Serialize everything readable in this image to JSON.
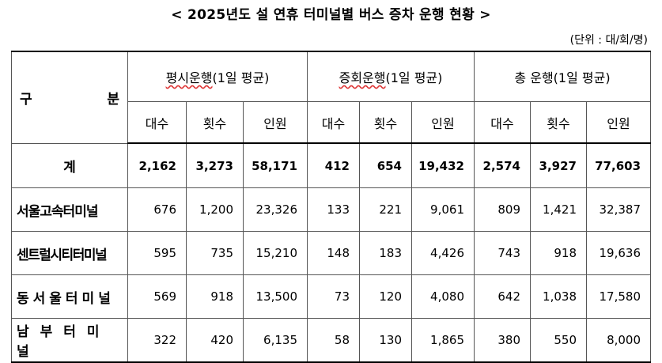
{
  "title": "< 2025년도 설 연휴 터미널별 버스 증차 운행 현황 >",
  "unit": "(단위 : 대/회/명)",
  "header": {
    "gubun_left": "구",
    "gubun_right": "분",
    "groups": [
      {
        "main": "평시운행",
        "sub": "(1일 평균)"
      },
      {
        "main": "증회운행",
        "sub": "(1일 평균)"
      },
      {
        "main": "총 운행",
        "sub": "(1일 평균)"
      }
    ],
    "subcols": [
      "대수",
      "횟수",
      "인원",
      "대수",
      "횟수",
      "인원",
      "대수",
      "횟수",
      "인원"
    ]
  },
  "rows": [
    {
      "name": "계",
      "values": [
        "2,162",
        "3,273",
        "58,171",
        "412",
        "654",
        "19,432",
        "2,574",
        "3,927",
        "77,603"
      ]
    },
    {
      "name": "서울고속터미널",
      "values": [
        "676",
        "1,200",
        "23,326",
        "133",
        "221",
        "9,061",
        "809",
        "1,421",
        "32,387"
      ]
    },
    {
      "name": "센트럴시티터미널",
      "values": [
        "595",
        "735",
        "15,210",
        "148",
        "183",
        "4,426",
        "743",
        "918",
        "19,636"
      ]
    },
    {
      "name": "동서울터미널",
      "values": [
        "569",
        "918",
        "13,500",
        "73",
        "120",
        "4,080",
        "642",
        "1,038",
        "17,580"
      ]
    },
    {
      "name": "남부터미널",
      "values": [
        "322",
        "420",
        "6,135",
        "58",
        "130",
        "1,865",
        "380",
        "550",
        "8,000"
      ]
    }
  ]
}
